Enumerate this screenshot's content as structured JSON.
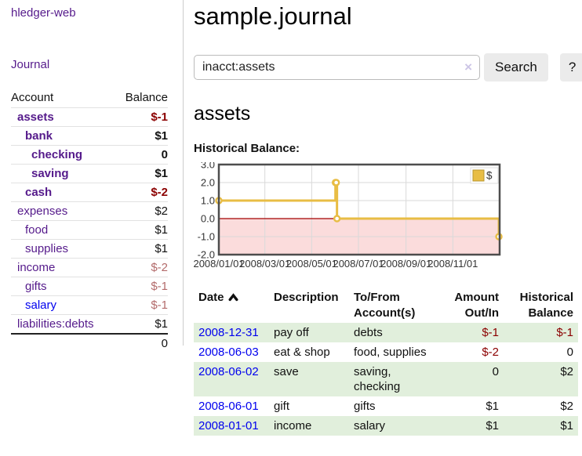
{
  "app": {
    "title": "hledger-web"
  },
  "sidebar": {
    "journal_link": "Journal",
    "account_header": "Account",
    "balance_header": "Balance",
    "rows": [
      {
        "account": "assets",
        "balance": "$-1"
      },
      {
        "account": "bank",
        "balance": "$1"
      },
      {
        "account": "checking",
        "balance": "0"
      },
      {
        "account": "saving",
        "balance": "$1"
      },
      {
        "account": "cash",
        "balance": "$-2"
      },
      {
        "account": "expenses",
        "balance": "$2"
      },
      {
        "account": "food",
        "balance": "$1"
      },
      {
        "account": "supplies",
        "balance": "$1"
      },
      {
        "account": "income",
        "balance": "$-2"
      },
      {
        "account": "gifts",
        "balance": "$-1"
      },
      {
        "account": "salary",
        "balance": "$-1"
      },
      {
        "account": "liabilities:debts",
        "balance": "$1"
      }
    ],
    "total": "0"
  },
  "main": {
    "title": "sample.journal",
    "search": {
      "value": "inacct:assets",
      "clear_label": "×",
      "button_label": "Search",
      "help_label": "?"
    },
    "account_heading": "assets",
    "section_label": "Historical Balance:"
  },
  "chart_data": {
    "type": "line",
    "step": true,
    "title": "Historical Balance:",
    "x_domain": [
      "2008-01-01",
      "2009-01-01"
    ],
    "ylim": [
      -2,
      3
    ],
    "y_ticks": [
      3.0,
      2.0,
      1.0,
      0.0,
      -1.0,
      -2.0
    ],
    "x_ticks": [
      {
        "date": "2008-01-01",
        "label": "2008/01/01"
      },
      {
        "date": "2008-03-01",
        "label": "2008/03/01"
      },
      {
        "date": "2008-05-01",
        "label": "2008/05/01"
      },
      {
        "date": "2008-07-01",
        "label": "2008/07/01"
      },
      {
        "date": "2008-09-01",
        "label": "2008/09/01"
      },
      {
        "date": "2008-11-01",
        "label": "2008/11/01"
      }
    ],
    "series": [
      {
        "name": "$",
        "color": "#e8bd45",
        "points": [
          {
            "date": "2008-01-01",
            "value": 1
          },
          {
            "date": "2008-06-01",
            "value": 2
          },
          {
            "date": "2008-06-02",
            "value": 2
          },
          {
            "date": "2008-06-03",
            "value": 0
          },
          {
            "date": "2008-12-31",
            "value": -1
          }
        ]
      }
    ],
    "legend": {
      "label": "$",
      "position": "top-right"
    },
    "grid": true,
    "negative_region_fill": "#fbdcdc",
    "zero_line_color": "#a40000",
    "grid_color": "#d9d9d9",
    "border_color": "#4d4d4d"
  },
  "register": {
    "headers": {
      "date": "Date",
      "description": "Description",
      "tofrom": "To/From Account(s)",
      "amount": "Amount Out/In",
      "balance": "Historical Balance"
    },
    "rows": [
      {
        "date": "2008-12-31",
        "description": "pay off",
        "accounts": "debts",
        "amount": "$-1",
        "balance": "$-1"
      },
      {
        "date": "2008-06-03",
        "description": "eat & shop",
        "accounts": "food, supplies",
        "amount": "$-2",
        "balance": "0"
      },
      {
        "date": "2008-06-02",
        "description": "save",
        "accounts": "saving, checking",
        "amount": "0",
        "balance": "$2"
      },
      {
        "date": "2008-06-01",
        "description": "gift",
        "accounts": "gifts",
        "amount": "$1",
        "balance": "$2"
      },
      {
        "date": "2008-01-01",
        "description": "income",
        "accounts": "salary",
        "amount": "$1",
        "balance": "$1"
      }
    ]
  },
  "colors": {
    "accent_purple": "#551a8b",
    "link_blue": "#0000ee",
    "negative_strong": "#8b0000",
    "negative_muted": "#b36b6b",
    "row_stripe_green": "#e1efdc",
    "chart_line_gold": "#e8bd45",
    "chart_negative_fill": "#fbdcdc",
    "chart_zero_line": "#a40000",
    "button_gray": "#ebebeb"
  }
}
